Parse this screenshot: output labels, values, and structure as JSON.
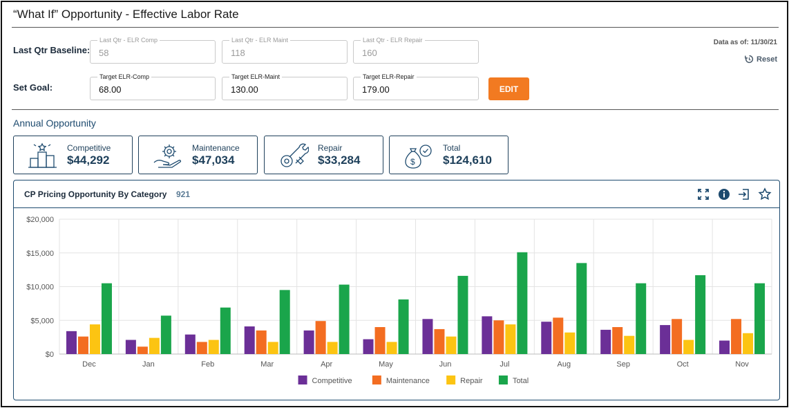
{
  "page": {
    "title": "“What If” Opportunity - Effective Labor Rate"
  },
  "baseline": {
    "label": "Last Qtr Baseline:",
    "fields": [
      {
        "label": "Last Qtr - ELR Comp",
        "value": "58"
      },
      {
        "label": "Last Qtr - ELR Maint",
        "value": "118"
      },
      {
        "label": "Last Qtr - ELR Repair",
        "value": "160"
      }
    ]
  },
  "goal": {
    "label": "Set Goal:",
    "fields": [
      {
        "label": "Target ELR-Comp",
        "value": "68.00"
      },
      {
        "label": "Target ELR-Maint",
        "value": "130.00"
      },
      {
        "label": "Target ELR-Repair",
        "value": "179.00"
      }
    ],
    "edit_label": "EDIT"
  },
  "data_as_of": "Data as of: 11/30/21",
  "reset_label": "Reset",
  "annual": {
    "title": "Annual Opportunity",
    "cards": [
      {
        "label": "Competitive",
        "value": "$44,292",
        "icon": "podium-icon"
      },
      {
        "label": "Maintenance",
        "value": "$47,034",
        "icon": "hand-gear-icon"
      },
      {
        "label": "Repair",
        "value": "$33,284",
        "icon": "wrench-gear-icon"
      },
      {
        "label": "Total",
        "value": "$124,610",
        "icon": "money-bag-gear-icon"
      }
    ]
  },
  "panel": {
    "title": "CP Pricing Opportunity By Category",
    "count": "921",
    "tools": [
      "expand-icon",
      "info-icon",
      "export-icon",
      "star-icon"
    ]
  },
  "colors": {
    "competitive": "#6b2f97",
    "maintenance": "#f36d21",
    "repair": "#fcc412",
    "total": "#1aa54b",
    "accent": "#f27a21",
    "navy": "#1d4a6e"
  },
  "chart_data": {
    "type": "bar",
    "categories": [
      "Dec",
      "Jan",
      "Feb",
      "Mar",
      "Apr",
      "May",
      "Jun",
      "Jul",
      "Aug",
      "Sep",
      "Oct",
      "Nov"
    ],
    "series": [
      {
        "name": "Competitive",
        "values": [
          3400,
          2100,
          2900,
          4100,
          3500,
          2200,
          5200,
          5600,
          4800,
          3600,
          4300,
          2000
        ]
      },
      {
        "name": "Maintenance",
        "values": [
          2600,
          1100,
          1800,
          3500,
          4900,
          4000,
          3700,
          5000,
          5400,
          4000,
          5200,
          5200
        ]
      },
      {
        "name": "Repair",
        "values": [
          4400,
          2400,
          2100,
          1800,
          1800,
          1800,
          2600,
          4400,
          3200,
          2700,
          2100,
          3100
        ]
      },
      {
        "name": "Total",
        "values": [
          10500,
          5700,
          6900,
          9500,
          10300,
          8100,
          11600,
          15100,
          13500,
          10500,
          11700,
          10500
        ]
      }
    ],
    "yticks": [
      "$0",
      "$5,000",
      "$10,000",
      "$15,000",
      "$20,000"
    ],
    "ylim": [
      0,
      20000
    ],
    "grid": true,
    "legend": "bottom-center"
  }
}
